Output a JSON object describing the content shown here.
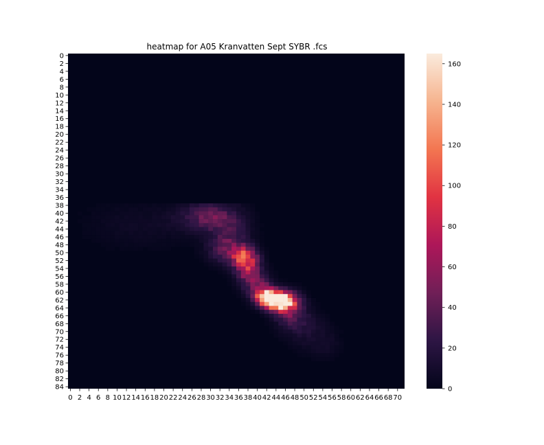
{
  "chart_data": {
    "type": "heatmap",
    "title": "heatmap for A05 Kranvatten Sept SYBR .fcs",
    "xlabel": "",
    "ylabel": "",
    "n_cols": 72,
    "n_rows": 85,
    "x_tick_labels": [
      "0",
      "2",
      "4",
      "6",
      "8",
      "10",
      "12",
      "14",
      "16",
      "18",
      "20",
      "22",
      "24",
      "26",
      "28",
      "30",
      "32",
      "34",
      "36",
      "38",
      "40",
      "42",
      "44",
      "46",
      "48",
      "50",
      "52",
      "54",
      "56",
      "58",
      "60",
      "62",
      "64",
      "66",
      "68",
      "70"
    ],
    "y_tick_labels": [
      "0",
      "2",
      "4",
      "6",
      "8",
      "10",
      "12",
      "14",
      "16",
      "18",
      "20",
      "22",
      "24",
      "26",
      "28",
      "30",
      "32",
      "34",
      "36",
      "38",
      "40",
      "42",
      "44",
      "46",
      "48",
      "50",
      "52",
      "54",
      "56",
      "58",
      "60",
      "62",
      "64",
      "66",
      "68",
      "70",
      "72",
      "74",
      "76",
      "78",
      "80",
      "82",
      "84"
    ],
    "colorbar": {
      "min": 0,
      "max": 165,
      "tick_labels": [
        "0",
        "20",
        "40",
        "60",
        "80",
        "100",
        "120",
        "140",
        "160"
      ],
      "colormap": "rocket",
      "stops": [
        "#03051a",
        "#2d1544",
        "#701f57",
        "#ad1759",
        "#e13342",
        "#f37651",
        "#f6b48f",
        "#faebdd"
      ]
    },
    "hotspots": [
      {
        "col": 44,
        "row": 62,
        "value": 165,
        "sx": 2.2,
        "sy": 1.4
      },
      {
        "col": 42,
        "row": 61,
        "value": 110,
        "sx": 1.6,
        "sy": 1.4
      },
      {
        "col": 46,
        "row": 63,
        "value": 100,
        "sx": 2.0,
        "sy": 2.0
      },
      {
        "col": 37,
        "row": 51,
        "value": 85,
        "sx": 1.8,
        "sy": 1.8
      },
      {
        "col": 38,
        "row": 54,
        "value": 60,
        "sx": 1.8,
        "sy": 2.5
      },
      {
        "col": 33,
        "row": 49,
        "value": 35,
        "sx": 2.5,
        "sy": 2.5
      },
      {
        "col": 31,
        "row": 41,
        "value": 35,
        "sx": 3.5,
        "sy": 2.5
      },
      {
        "col": 27,
        "row": 41,
        "value": 14,
        "sx": 4.0,
        "sy": 2.5
      },
      {
        "col": 15,
        "row": 43,
        "value": 6,
        "sx": 8.0,
        "sy": 4.0
      },
      {
        "col": 48,
        "row": 67,
        "value": 25,
        "sx": 2.5,
        "sy": 2.5
      },
      {
        "col": 52,
        "row": 71,
        "value": 10,
        "sx": 3.0,
        "sy": 3.0
      },
      {
        "col": 40,
        "row": 58,
        "value": 40,
        "sx": 2.0,
        "sy": 2.0
      },
      {
        "col": 35,
        "row": 45,
        "value": 20,
        "sx": 2.5,
        "sy": 3.0
      },
      {
        "col": 55,
        "row": 74,
        "value": 5,
        "sx": 2.0,
        "sy": 2.0
      }
    ]
  }
}
